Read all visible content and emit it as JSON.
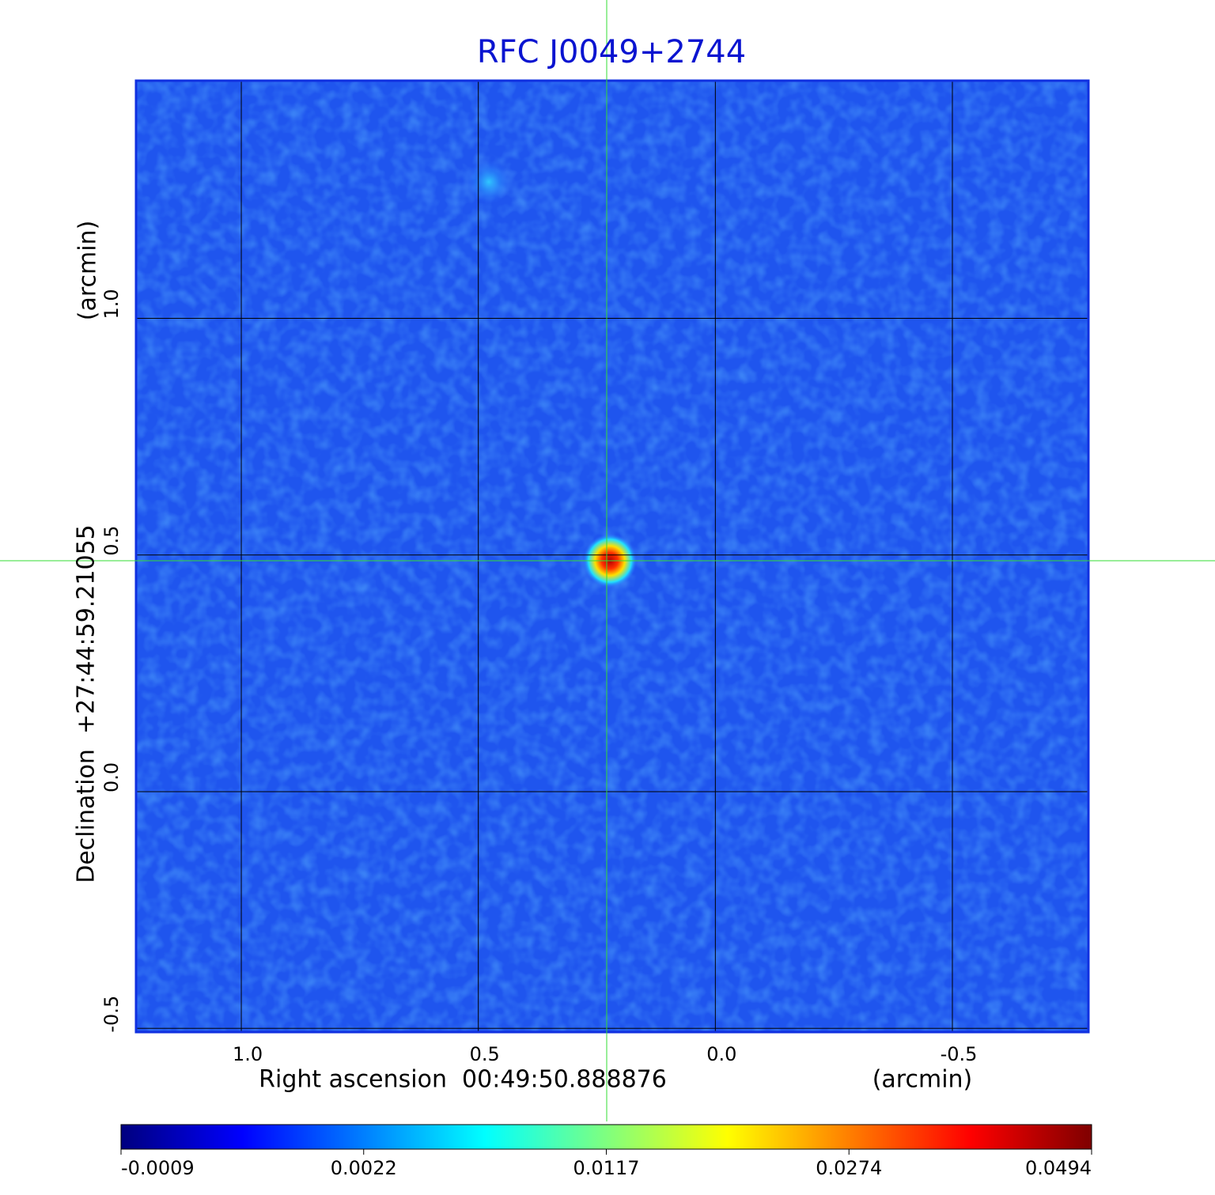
{
  "chart_data": {
    "type": "image",
    "title": "RFC J0049+2744",
    "x_label": "Right ascension  00:49:50.888876",
    "x_unit": "(arcmin)",
    "y_label": "Declination  +27:44:59.21055",
    "y_unit": "(arcmin)",
    "xlim": [
      1.222,
      -0.787
    ],
    "ylim": [
      -0.508,
      1.502
    ],
    "xticks": [
      {
        "value": 1,
        "label": "1.0"
      },
      0.5,
      {
        "value": 0,
        "label": "0.0"
      },
      -0.5
    ],
    "yticks": [
      -0.5,
      {
        "value": 0,
        "label": "0.0"
      },
      0.5,
      {
        "value": 1,
        "label": "1.0"
      }
    ],
    "grid": true,
    "colormap": [
      "#00007f",
      "#0000ff",
      "#007fff",
      "#00ffff",
      "#7fff7f",
      "#ffff00",
      "#ff7f00",
      "#ff0000",
      "#7f0000"
    ],
    "colorbar_lim": [
      -0.0009,
      0.0494
    ],
    "colorbar_ticks": [
      -0.0009,
      0.0022,
      0.0117,
      0.0274,
      0.0494
    ]
  }
}
